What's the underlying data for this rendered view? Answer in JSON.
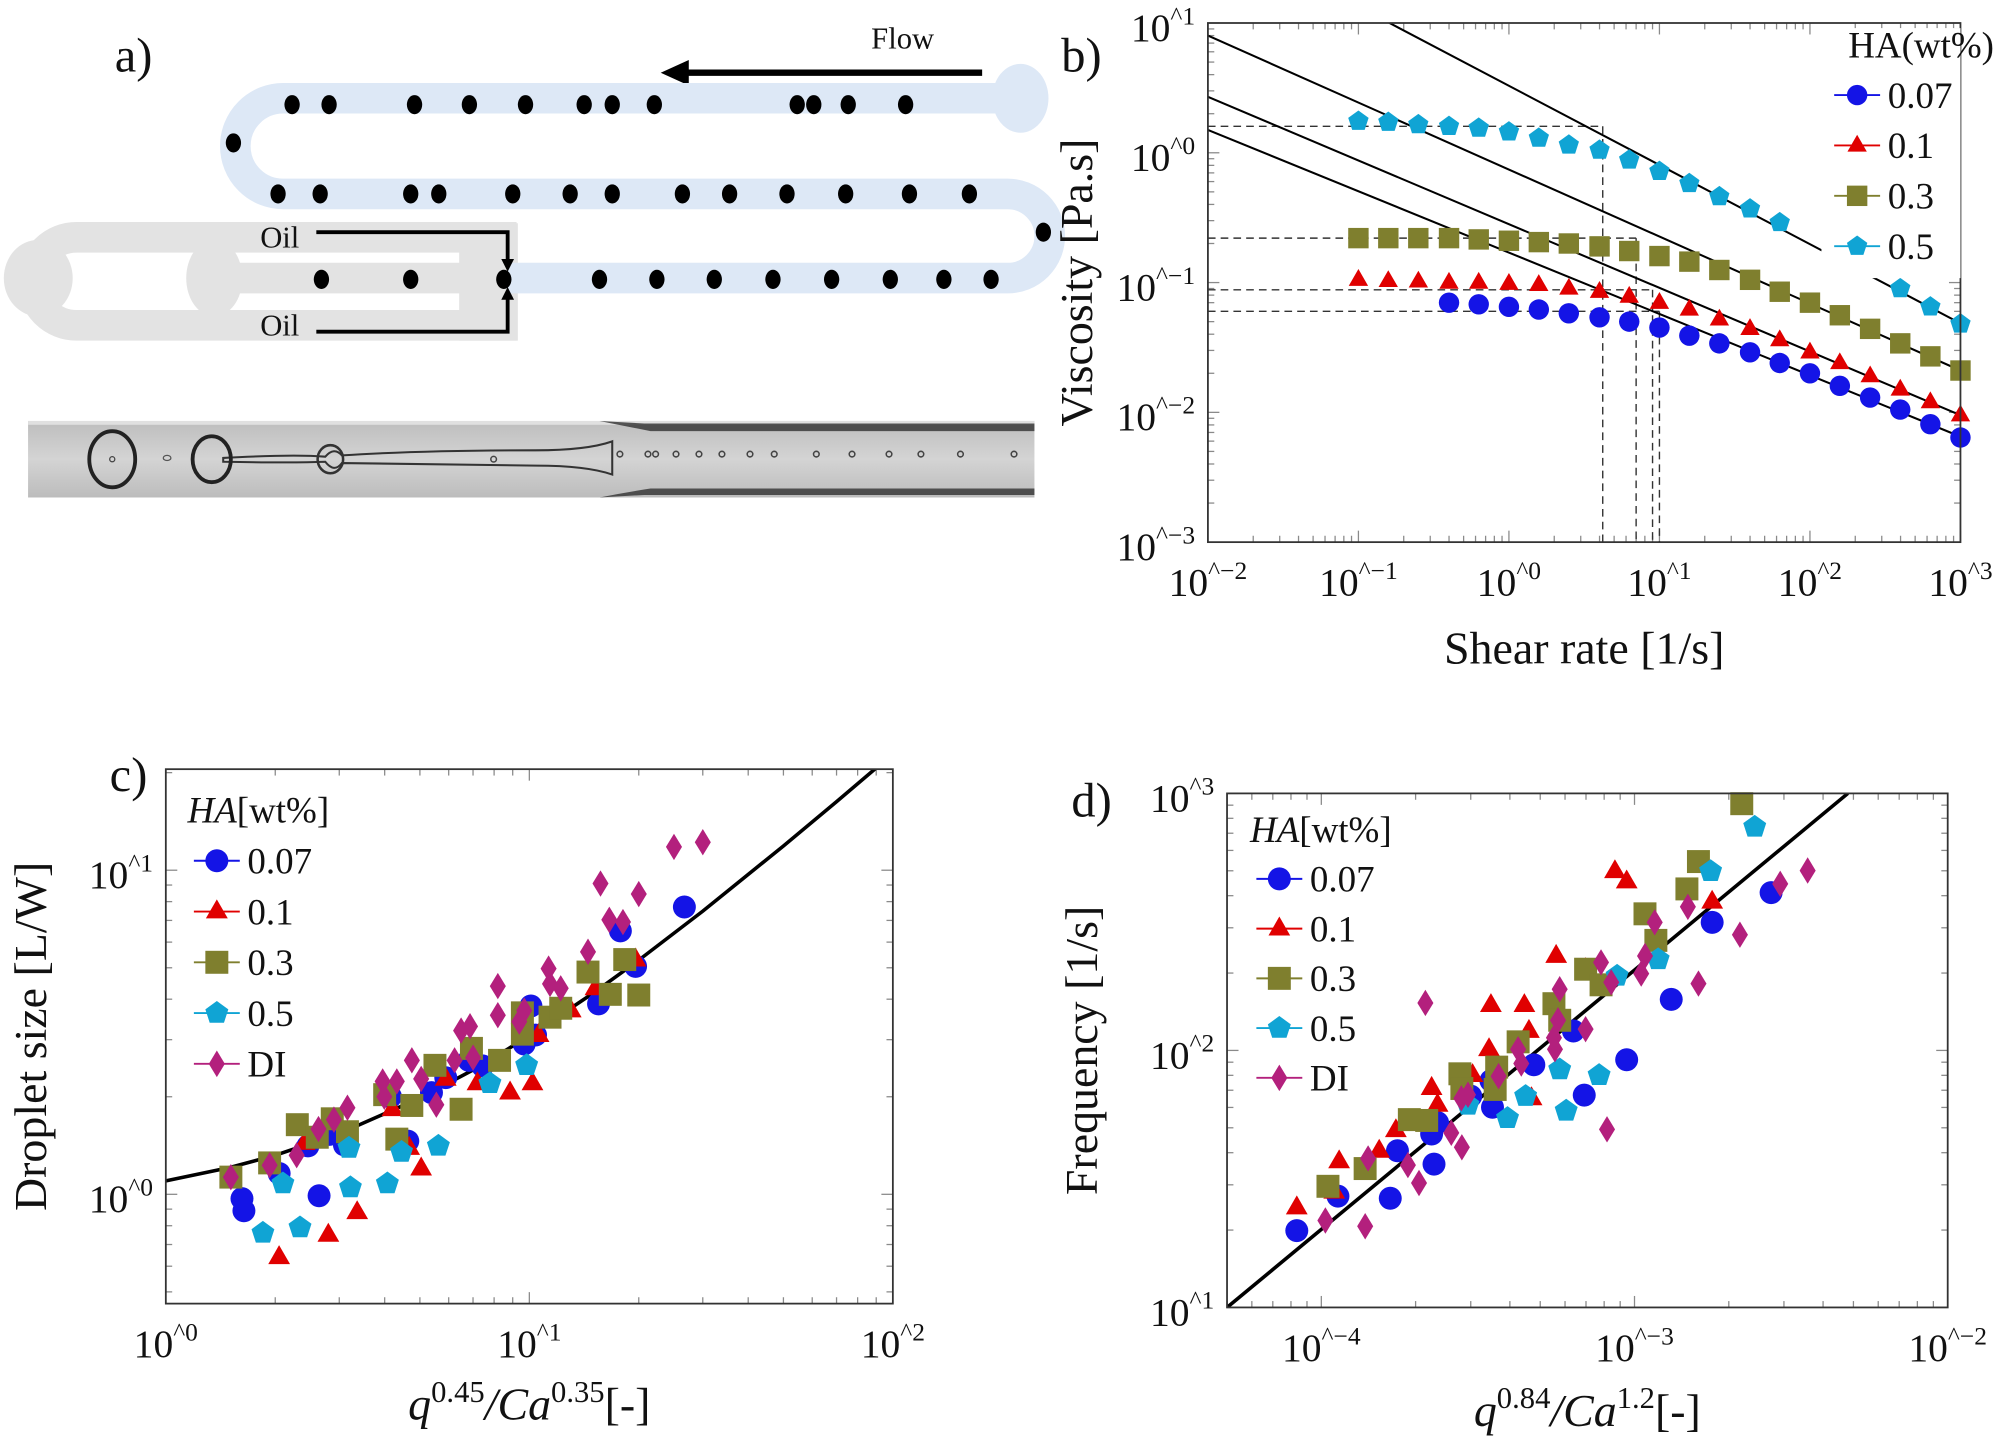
{
  "panel_a": {
    "panel_label": "a)",
    "flow_label": "Flow",
    "oil_top_label": "Oil",
    "oil_bottom_label": "Oil",
    "channel_color": "#dde8f6",
    "inlet_color": "#e3e3e3"
  },
  "chart_data": [
    {
      "panel_label": "b)",
      "type": "scatter",
      "xscale": "log",
      "yscale": "log",
      "xlim": [
        0.01,
        1000
      ],
      "ylim": [
        0.001,
        10
      ],
      "xticks": [
        0.01,
        0.1,
        1,
        10,
        100,
        1000
      ],
      "xtick_labels": [
        "10^−2",
        "10^−1",
        "10^0",
        "10^1",
        "10^2",
        "10^3"
      ],
      "yticks": [
        0.001,
        0.01,
        0.1,
        1,
        10
      ],
      "ytick_labels": [
        "10^−3",
        "10^−2",
        "10^−1",
        "10^0",
        "10^1"
      ],
      "xlabel": [
        [
          "Shear rate [1/s]",
          ""
        ]
      ],
      "ylabel": [
        [
          "Viscosity [Pa.s]",
          ""
        ]
      ],
      "grid": false,
      "legend": {
        "title": [
          "HA(wt%)",
          ""
        ],
        "placement": "top-right"
      },
      "series": [
        {
          "name": "0.07",
          "marker": "circle",
          "color": "#1414e6",
          "x": [
            0.4,
            0.63,
            1,
            1.58,
            2.5,
            4,
            6.3,
            10,
            15.8,
            25,
            40,
            63,
            100,
            158,
            251,
            398,
            631,
            1000
          ],
          "y": [
            0.07,
            0.068,
            0.065,
            0.062,
            0.058,
            0.054,
            0.05,
            0.045,
            0.039,
            0.034,
            0.029,
            0.024,
            0.02,
            0.016,
            0.013,
            0.0105,
            0.0081,
            0.0064
          ]
        },
        {
          "name": "0.1",
          "marker": "triangle",
          "color": "#e00000",
          "x": [
            0.1,
            0.158,
            0.25,
            0.4,
            0.63,
            1,
            1.58,
            2.5,
            4,
            6.3,
            10,
            15.8,
            25,
            40,
            63,
            100,
            158,
            251,
            398,
            631,
            1000
          ],
          "y": [
            0.105,
            0.103,
            0.102,
            0.1,
            0.1,
            0.098,
            0.096,
            0.09,
            0.085,
            0.078,
            0.07,
            0.062,
            0.052,
            0.044,
            0.036,
            0.029,
            0.024,
            0.019,
            0.015,
            0.012,
            0.0095
          ]
        },
        {
          "name": "0.3",
          "marker": "square",
          "color": "#7f7f2e",
          "x": [
            0.1,
            0.158,
            0.25,
            0.4,
            0.63,
            1,
            1.58,
            2.5,
            4,
            6.3,
            10,
            15.8,
            25,
            40,
            63,
            100,
            158,
            251,
            398,
            631,
            1000
          ],
          "y": [
            0.22,
            0.22,
            0.22,
            0.22,
            0.215,
            0.21,
            0.205,
            0.2,
            0.19,
            0.175,
            0.16,
            0.145,
            0.125,
            0.105,
            0.085,
            0.07,
            0.056,
            0.044,
            0.034,
            0.027,
            0.021
          ]
        },
        {
          "name": "0.5",
          "marker": "pentagon",
          "color": "#10a4d4",
          "x": [
            0.1,
            0.158,
            0.25,
            0.4,
            0.63,
            1,
            1.58,
            2.5,
            4,
            6.3,
            10,
            15.8,
            25,
            40,
            63,
            398,
            631,
            1000
          ],
          "y": [
            1.75,
            1.72,
            1.65,
            1.6,
            1.55,
            1.45,
            1.3,
            1.15,
            1.05,
            0.88,
            0.72,
            0.58,
            0.46,
            0.37,
            0.29,
            0.09,
            0.065,
            0.048
          ]
        }
      ],
      "fit_lines": [
        {
          "x": [
            0.01,
            1000
          ],
          "y": [
            54.5,
            0.0485
          ]
        },
        {
          "x": [
            0.01,
            1000
          ],
          "y": [
            8,
            0.021
          ]
        },
        {
          "x": [
            0.01,
            1000
          ],
          "y": [
            2.7,
            0.0095
          ]
        },
        {
          "x": [
            0.01,
            1000
          ],
          "y": [
            1.5,
            0.0065
          ]
        }
      ],
      "guides": [
        {
          "eta0": 1.6,
          "gamma_c": 4.2
        },
        {
          "eta0": 0.22,
          "gamma_c": 7
        },
        {
          "eta0": 0.088,
          "gamma_c": 9
        },
        {
          "eta0": 0.06,
          "gamma_c": 10
        }
      ]
    },
    {
      "panel_label": "c)",
      "type": "scatter",
      "xscale": "log",
      "yscale": "log",
      "xlim": [
        1,
        100
      ],
      "ylim": [
        0.46,
        20.5
      ],
      "xticks": [
        1,
        10,
        100
      ],
      "xtick_labels": [
        "10^0",
        "10^1",
        "10^2"
      ],
      "yticks": [
        1,
        10
      ],
      "ytick_labels": [
        "10^0",
        "10^1"
      ],
      "xlabel": [
        [
          "q",
          "0.45"
        ],
        [
          "/Ca",
          "0.35"
        ],
        [
          "[-]",
          ""
        ]
      ],
      "ylabel": [
        [
          "Droplet size [L/W]",
          ""
        ]
      ],
      "grid": false,
      "legend": {
        "title": [
          "HA",
          "[wt%]"
        ],
        "placement": "top-left"
      },
      "series": [
        {
          "name": "0.07",
          "marker": "circle",
          "color": "#1414e6",
          "x": [
            1.62,
            1.64,
            2.05,
            2.46,
            2.82,
            3.1,
            2.64,
            4.15,
            4.63,
            5.38,
            5.89,
            6.82,
            7.43,
            9.68,
            10.4,
            10.1,
            15.5,
            17.8,
            19.6,
            26.7
          ],
          "y": [
            0.97,
            0.89,
            1.16,
            1.41,
            1.53,
            1.42,
            0.99,
            2.0,
            1.46,
            2.06,
            2.29,
            2.59,
            2.49,
            2.91,
            3.1,
            3.81,
            3.87,
            6.5,
            5.05,
            7.7
          ]
        },
        {
          "name": "0.1",
          "marker": "triangle",
          "color": "#e00000",
          "x": [
            2.05,
            2.8,
            3.36,
            5.04,
            4.2,
            5.89,
            7.2,
            8.85,
            10.2,
            10.6,
            13.0,
            15.2,
            19.6,
            2.41,
            4.67
          ],
          "y": [
            0.64,
            0.75,
            0.88,
            1.2,
            1.83,
            2.27,
            2.2,
            2.06,
            2.2,
            3.1,
            3.69,
            4.32,
            5.3,
            1.44,
            1.39
          ]
        },
        {
          "name": "0.3",
          "marker": "square",
          "color": "#7f7f2e",
          "x": [
            1.51,
            1.93,
            2.3,
            2.61,
            2.87,
            3.16,
            4.0,
            4.32,
            4.75,
            5.5,
            6.49,
            6.93,
            8.28,
            9.57,
            9.57,
            11.4,
            12.2,
            14.5,
            16.7,
            18.3,
            20.0
          ],
          "y": [
            1.13,
            1.25,
            1.64,
            1.5,
            1.71,
            1.56,
            2.03,
            1.48,
            1.88,
            2.5,
            1.83,
            2.82,
            2.59,
            3.12,
            3.63,
            3.52,
            3.75,
            4.85,
            4.14,
            5.3,
            4.12
          ]
        },
        {
          "name": "0.5",
          "marker": "pentagon",
          "color": "#10a4d4",
          "x": [
            1.85,
            2.34,
            2.1,
            3.19,
            3.22,
            4.07,
            4.45,
            5.62,
            7.79,
            9.83
          ],
          "y": [
            0.76,
            0.79,
            1.08,
            1.39,
            1.05,
            1.08,
            1.35,
            1.41,
            2.2,
            2.5
          ]
        },
        {
          "name": "DI",
          "marker": "diamond",
          "color": "#b3207d",
          "x": [
            1.51,
            1.93,
            2.29,
            2.63,
            2.9,
            3.16,
            3.95,
            4.32,
            3.99,
            4.75,
            5.04,
            5.55,
            6.23,
            6.49,
            6.87,
            7.0,
            8.19,
            8.19,
            9.38,
            9.68,
            11.3,
            11.4,
            12.2,
            14.5,
            15.7,
            16.6,
            18.1,
            20.0,
            25.0,
            30.0
          ],
          "y": [
            1.13,
            1.23,
            1.32,
            1.59,
            1.7,
            1.85,
            2.23,
            2.23,
            2.0,
            2.59,
            2.27,
            1.89,
            2.59,
            3.2,
            3.3,
            2.64,
            4.39,
            3.57,
            3.41,
            3.69,
            4.97,
            4.46,
            4.32,
            5.6,
            9.1,
            7.03,
            6.92,
            8.44,
            11.8,
            12.2
          ]
        }
      ],
      "fit_curve": {
        "x": [
          1,
          1.5,
          2,
          3,
          5,
          7,
          10,
          15,
          20,
          30,
          50,
          70,
          90
        ],
        "y": [
          1.1,
          1.21,
          1.32,
          1.54,
          1.98,
          2.42,
          3.08,
          4.18,
          5.28,
          7.48,
          11.88,
          16.28,
          20.68
        ]
      }
    },
    {
      "panel_label": "d)",
      "type": "scatter",
      "xscale": "log",
      "yscale": "log",
      "xlim": [
        5e-05,
        0.01
      ],
      "ylim": [
        10,
        1000
      ],
      "xticks": [
        0.0001,
        0.001,
        0.01
      ],
      "xtick_labels": [
        "10^−4",
        "10^−3",
        "10^−2"
      ],
      "yticks": [
        10,
        100,
        1000
      ],
      "ytick_labels": [
        "10^1",
        "10^2",
        "10^3"
      ],
      "xlabel": [
        [
          "q",
          "0.84"
        ],
        [
          "/Ca",
          "1.2"
        ],
        [
          "[-]",
          ""
        ]
      ],
      "ylabel": [
        [
          "Frequency [1/s]",
          ""
        ]
      ],
      "grid": false,
      "legend": {
        "title": [
          "HA",
          "[wt%]"
        ],
        "placement": "top-left"
      },
      "series": [
        {
          "name": "0.07",
          "marker": "circle",
          "color": "#1414e6",
          "x": [
            8.35e-05,
            0.000113,
            0.000166,
            0.000175,
            0.000225,
            0.000229,
            0.000235,
            0.0003,
            0.000348,
            0.000352,
            0.000477,
            0.000638,
            0.000691,
            0.000944,
            0.00131,
            0.00177,
            0.00273
          ],
          "y": [
            19.9,
            27.1,
            26.6,
            40.7,
            47.3,
            36.1,
            52.4,
            66.4,
            76.3,
            60.1,
            87.9,
            119,
            67,
            92,
            158,
            315,
            411
          ]
        },
        {
          "name": "0.1",
          "marker": "triangle",
          "color": "#e00000",
          "x": [
            8.35e-05,
            0.000114,
            0.00011,
            0.000153,
            0.000173,
            0.000225,
            0.000235,
            0.000304,
            0.000343,
            0.000348,
            0.000445,
            0.00046,
            0.000469,
            0.000562,
            0.000866,
            0.000944,
            0.00177,
            0.000698
          ],
          "y": [
            24.5,
            37,
            28.2,
            40.7,
            48.9,
            71.4,
            61.4,
            80.1,
            101,
            150,
            150,
            119,
            65.1,
            233,
            498,
            454,
            379,
            207
          ]
        },
        {
          "name": "0.3",
          "marker": "square",
          "color": "#7f7f2e",
          "x": [
            0.000105,
            0.000138,
            0.000191,
            0.000217,
            0.000277,
            0.000281,
            0.000359,
            0.000363,
            0.000425,
            0.000553,
            0.000577,
            0.000698,
            0.000782,
            0.00108,
            0.00117,
            0.00147,
            0.0016,
            0.0022
          ],
          "y": [
            29.6,
            34.7,
            53.8,
            53.4,
            81.1,
            71.1,
            70.5,
            86.1,
            108,
            152,
            131,
            207,
            180,
            340,
            268,
            425,
            543,
            912
          ]
        },
        {
          "name": "0.5",
          "marker": "pentagon",
          "color": "#10a4d4",
          "x": [
            0.000294,
            0.000393,
            0.000449,
            0.000577,
            0.000605,
            0.000771,
            0.00088,
            0.00119,
            0.00175,
            0.00242
          ],
          "y": [
            61.4,
            54.5,
            66.4,
            84.3,
            58.2,
            80.1,
            195,
            226,
            498,
            741
          ]
        },
        {
          "name": "DI",
          "marker": "diamond",
          "color": "#b3207d",
          "x": [
            0.000103,
            0.000138,
            0.000141,
            0.000189,
            0.000205,
            0.00026,
            0.000281,
            0.00028,
            0.000294,
            0.000368,
            0.000425,
            0.000435,
            0.000553,
            0.000557,
            0.000577,
            0.00057,
            0.000698,
            0.000782,
            0.000843,
            0.000817,
            0.00105,
            0.00108,
            0.00116,
            0.00148,
            0.0016,
            0.00217,
            0.00292,
            0.00357,
            0.000215
          ],
          "y": [
            21.8,
            20.7,
            38,
            35.8,
            30.5,
            47.8,
            42,
            65.1,
            67.2,
            79.4,
            101,
            88.9,
            112,
            101,
            173,
            131,
            121,
            220,
            184,
            49.3,
            199,
            233,
            315,
            362,
            182,
            282,
            445,
            501,
            153
          ]
        }
      ],
      "fit_line": {
        "x": [
          5e-05,
          0.0048
        ],
        "y": [
          10,
          1000
        ]
      }
    }
  ]
}
